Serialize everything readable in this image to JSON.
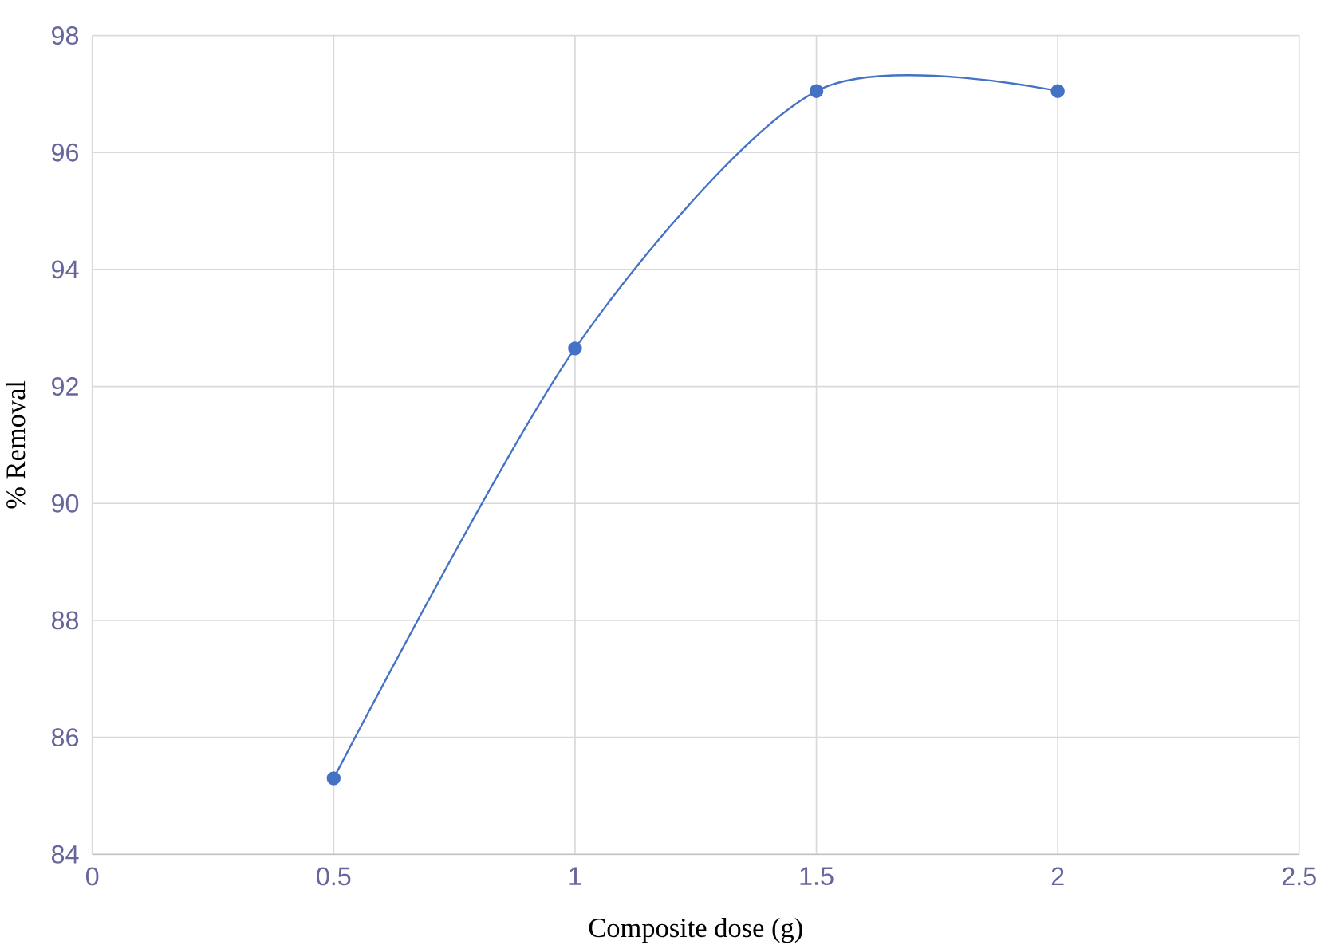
{
  "chart_data": {
    "type": "line",
    "xlabel": "Composite dose (g)",
    "ylabel": "% Removal",
    "x": [
      0.5,
      1,
      1.5,
      2
    ],
    "series": [
      {
        "color": "#4472c4",
        "values": [
          85.3,
          92.65,
          97.05,
          97.05
        ]
      }
    ],
    "xlim": [
      0,
      2.5
    ],
    "xticks": [
      0,
      0.5,
      1,
      1.5,
      2,
      2.5
    ],
    "ylim": [
      84,
      98
    ],
    "yticks": [
      84,
      86,
      88,
      90,
      92,
      94,
      96,
      98
    ],
    "grid": true,
    "marker": "circle",
    "line_style": "solid"
  }
}
